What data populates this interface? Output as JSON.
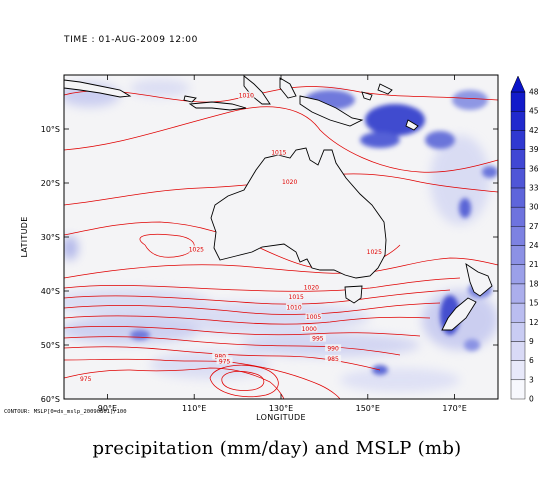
{
  "header": {
    "time_label": "TIME : 01-AUG-2009 12:00"
  },
  "map": {
    "xlabel": "LONGITUDE",
    "ylabel": "LATITUDE",
    "lon_range": [
      80,
      180
    ],
    "lat_range": [
      -60,
      0
    ],
    "lon_ticks": [
      {
        "lon": 90,
        "label": "90°E"
      },
      {
        "lon": 110,
        "label": "110°E"
      },
      {
        "lon": 130,
        "label": "130°E"
      },
      {
        "lon": 150,
        "label": "150°E"
      },
      {
        "lon": 170,
        "label": "170°E"
      }
    ],
    "lat_ticks": [
      {
        "lat": -10,
        "label": "10°S"
      },
      {
        "lat": -20,
        "label": "20°S"
      },
      {
        "lat": -30,
        "label": "30°S"
      },
      {
        "lat": -40,
        "label": "40°S"
      },
      {
        "lat": -50,
        "label": "50°S"
      },
      {
        "lat": -60,
        "label": "60°S"
      }
    ],
    "isobar_color": "#e00000",
    "isobar_labels": [
      {
        "text": "1010",
        "lon": 122,
        "lat": -4
      },
      {
        "text": "1015",
        "lon": 129.5,
        "lat": -14.5
      },
      {
        "text": "1020",
        "lon": 132,
        "lat": -20
      },
      {
        "text": "1025",
        "lon": 110.5,
        "lat": -32.5
      },
      {
        "text": "1025",
        "lon": 151.5,
        "lat": -33
      },
      {
        "text": "1020",
        "lon": 137,
        "lat": -39.5
      },
      {
        "text": "1015",
        "lon": 133.5,
        "lat": -41.3
      },
      {
        "text": "1010",
        "lon": 133,
        "lat": -43.2
      },
      {
        "text": "1005",
        "lon": 137.5,
        "lat": -45
      },
      {
        "text": "1000",
        "lon": 136.5,
        "lat": -47.2
      },
      {
        "text": "995",
        "lon": 138.5,
        "lat": -49
      },
      {
        "text": "990",
        "lon": 142,
        "lat": -50.8
      },
      {
        "text": "985",
        "lon": 142,
        "lat": -52.8
      },
      {
        "text": "980",
        "lon": 116,
        "lat": -52.3
      },
      {
        "text": "975",
        "lon": 117,
        "lat": -53.2
      },
      {
        "text": "975",
        "lon": 85,
        "lat": -56.5
      }
    ]
  },
  "colorbar": {
    "min": 0,
    "max": 48,
    "ticks": [
      "0",
      "3",
      "6",
      "9",
      "12",
      "15",
      "18",
      "21",
      "24",
      "27",
      "30",
      "33",
      "36",
      "39",
      "42",
      "45",
      "48"
    ],
    "low_color": "#ffffff",
    "high_color": "#0a14c8"
  },
  "footer": {
    "contour_note": "CONTOUR: MSLP[0=ds_mslp_20090801]/100",
    "caption": "precipitation (mm/day) and MSLP (mb)"
  }
}
